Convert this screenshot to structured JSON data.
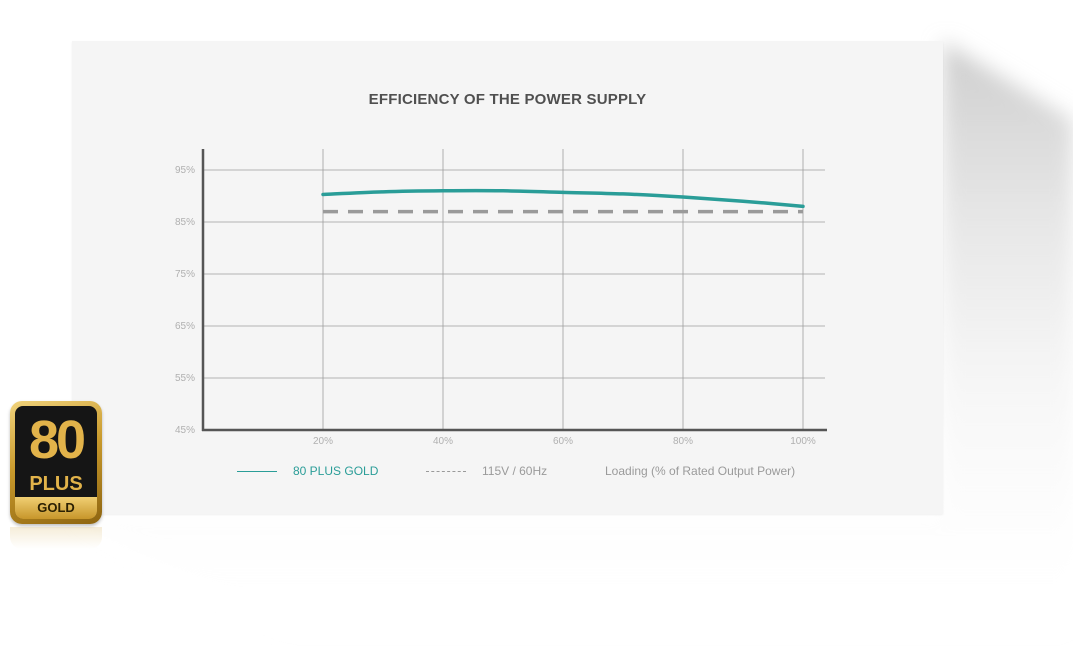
{
  "chart_data": {
    "type": "line",
    "title": "EFFICIENCY OF THE POWER SUPPLY",
    "xlabel": "Loading (% of Rated Output Power)",
    "ylabel": "",
    "x_ticks": [
      "20%",
      "40%",
      "60%",
      "80%",
      "100%"
    ],
    "y_ticks": [
      "95%",
      "85%",
      "75%",
      "65%",
      "55%",
      "45%"
    ],
    "xlim": [
      0,
      100
    ],
    "ylim": [
      45,
      99
    ],
    "grid": true,
    "legend_position": "bottom",
    "series": [
      {
        "name": "80 PLUS GOLD",
        "style": "solid",
        "color": "#2a9d98",
        "x": [
          20,
          30,
          40,
          50,
          60,
          70,
          80,
          90,
          100
        ],
        "y": [
          90.3,
          90.8,
          91.0,
          91.0,
          90.7,
          90.4,
          89.8,
          89.0,
          88.0
        ]
      },
      {
        "name": "115V / 60Hz",
        "style": "dashed",
        "color": "#9a9a9a",
        "x": [
          20,
          100
        ],
        "y": [
          87.0,
          87.0
        ]
      }
    ]
  },
  "legend": {
    "gold_label": "80 PLUS GOLD",
    "voltage_label": "115V / 60Hz",
    "loading_label": "Loading (% of Rated Output Power)"
  },
  "badge": {
    "number": "80",
    "plus": "PLUS",
    "tier": "GOLD"
  },
  "colors": {
    "gold_series": "#2a9d98",
    "dashed_series": "#9a9a9a",
    "axis": "#555555",
    "grid": "#9e9e9e",
    "card": "#f5f5f5"
  }
}
